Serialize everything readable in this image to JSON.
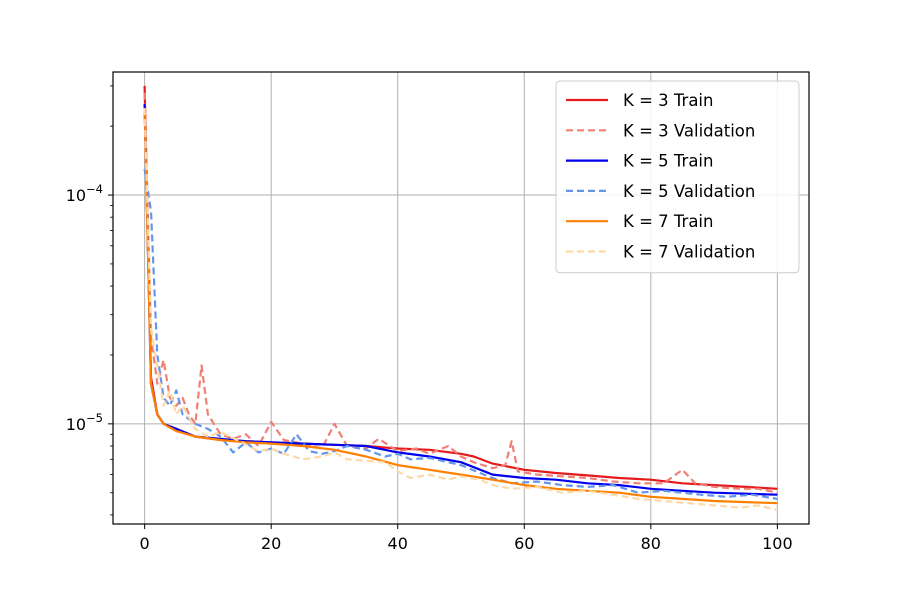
{
  "chart_data": {
    "type": "line",
    "title": "",
    "xlabel": "",
    "ylabel": "",
    "xlim": [
      -5,
      105
    ],
    "ylim": [
      3.65e-06,
      0.000345
    ],
    "yscale": "log",
    "grid": true,
    "legend_position": "top-right",
    "x_ticks": [
      0,
      20,
      40,
      60,
      80,
      100
    ],
    "x_tick_labels": [
      "0",
      "20",
      "40",
      "60",
      "80",
      "100"
    ],
    "y_ticks": [
      1e-05,
      0.0001
    ],
    "y_tick_labels": [
      {
        "base": "10",
        "exp": "−5"
      },
      {
        "base": "10",
        "exp": "−4"
      }
    ],
    "series": [
      {
        "name": "K = 3 Train",
        "color": "#e41a1c",
        "dash": "solid",
        "points": [
          [
            0,
            0.0003
          ],
          [
            1,
            1.6e-05
          ],
          [
            2,
            1.1e-05
          ],
          [
            3,
            1e-05
          ],
          [
            5,
            9.5e-06
          ],
          [
            8,
            8.8e-06
          ],
          [
            12,
            8.5e-06
          ],
          [
            16,
            8.4e-06
          ],
          [
            20,
            8.3e-06
          ],
          [
            25,
            8.2e-06
          ],
          [
            30,
            8.1e-06
          ],
          [
            35,
            8e-06
          ],
          [
            40,
            7.8e-06
          ],
          [
            45,
            7.7e-06
          ],
          [
            50,
            7.4e-06
          ],
          [
            52,
            7.2e-06
          ],
          [
            55,
            6.7e-06
          ],
          [
            60,
            6.3e-06
          ],
          [
            65,
            6.1e-06
          ],
          [
            70,
            5.95e-06
          ],
          [
            75,
            5.8e-06
          ],
          [
            80,
            5.7e-06
          ],
          [
            85,
            5.5e-06
          ],
          [
            90,
            5.4e-06
          ],
          [
            95,
            5.3e-06
          ],
          [
            100,
            5.2e-06
          ]
        ]
      },
      {
        "name": "K = 3 Validation",
        "color": "#f08074",
        "dash": "dashed",
        "points": [
          [
            0,
            0.00028
          ],
          [
            1,
            2.4e-05
          ],
          [
            2,
            1.5e-05
          ],
          [
            3,
            1.9e-05
          ],
          [
            4,
            1.3e-05
          ],
          [
            5,
            1.2e-05
          ],
          [
            6,
            1.3e-05
          ],
          [
            7,
            1.1e-05
          ],
          [
            8,
            1e-05
          ],
          [
            9,
            1.8e-05
          ],
          [
            10,
            1.1e-05
          ],
          [
            12,
            9e-06
          ],
          [
            14,
            8.6e-06
          ],
          [
            16,
            9e-06
          ],
          [
            18,
            8e-06
          ],
          [
            20,
            1.02e-05
          ],
          [
            22,
            8.5e-06
          ],
          [
            25,
            8.2e-06
          ],
          [
            28,
            7.8e-06
          ],
          [
            30,
            1e-05
          ],
          [
            32,
            8e-06
          ],
          [
            35,
            7.8e-06
          ],
          [
            37,
            8.6e-06
          ],
          [
            40,
            7.6e-06
          ],
          [
            43,
            7.8e-06
          ],
          [
            45,
            7.4e-06
          ],
          [
            48,
            8e-06
          ],
          [
            50,
            7.2e-06
          ],
          [
            52,
            6.8e-06
          ],
          [
            55,
            6.4e-06
          ],
          [
            57,
            6.6e-06
          ],
          [
            58,
            8.4e-06
          ],
          [
            59,
            6.2e-06
          ],
          [
            62,
            6e-06
          ],
          [
            66,
            5.9e-06
          ],
          [
            70,
            5.8e-06
          ],
          [
            74,
            5.6e-06
          ],
          [
            78,
            5.5e-06
          ],
          [
            82,
            5.5e-06
          ],
          [
            85,
            6.3e-06
          ],
          [
            87,
            5.5e-06
          ],
          [
            90,
            5.3e-06
          ],
          [
            94,
            5.2e-06
          ],
          [
            97,
            5.2e-06
          ],
          [
            100,
            5e-06
          ]
        ]
      },
      {
        "name": "K = 5 Train",
        "color": "#0000ee",
        "dash": "solid",
        "points": [
          [
            0,
            0.00025
          ],
          [
            1,
            1.5e-05
          ],
          [
            2,
            1.1e-05
          ],
          [
            3,
            1e-05
          ],
          [
            5,
            9.5e-06
          ],
          [
            8,
            8.8e-06
          ],
          [
            12,
            8.6e-06
          ],
          [
            16,
            8.4e-06
          ],
          [
            20,
            8.3e-06
          ],
          [
            25,
            8.2e-06
          ],
          [
            30,
            8.1e-06
          ],
          [
            35,
            8e-06
          ],
          [
            40,
            7.5e-06
          ],
          [
            45,
            7.2e-06
          ],
          [
            50,
            6.8e-06
          ],
          [
            55,
            6e-06
          ],
          [
            60,
            5.8e-06
          ],
          [
            65,
            5.7e-06
          ],
          [
            70,
            5.5e-06
          ],
          [
            75,
            5.4e-06
          ],
          [
            80,
            5.2e-06
          ],
          [
            85,
            5.1e-06
          ],
          [
            90,
            5e-06
          ],
          [
            95,
            4.95e-06
          ],
          [
            100,
            4.9e-06
          ]
        ]
      },
      {
        "name": "K = 5 Validation",
        "color": "#6495ed",
        "dash": "dashed",
        "points": [
          [
            0,
            0.00013
          ],
          [
            1,
            8.5e-05
          ],
          [
            2,
            2e-05
          ],
          [
            3,
            1.3e-05
          ],
          [
            4,
            1.2e-05
          ],
          [
            5,
            1.4e-05
          ],
          [
            6,
            1.1e-05
          ],
          [
            8,
            1e-05
          ],
          [
            10,
            9.5e-06
          ],
          [
            12,
            8.8e-06
          ],
          [
            14,
            7.5e-06
          ],
          [
            16,
            8.3e-06
          ],
          [
            18,
            7.5e-06
          ],
          [
            20,
            7.8e-06
          ],
          [
            22,
            7.4e-06
          ],
          [
            24,
            9e-06
          ],
          [
            26,
            7.6e-06
          ],
          [
            28,
            7.4e-06
          ],
          [
            30,
            7.6e-06
          ],
          [
            32,
            8e-06
          ],
          [
            35,
            7.7e-06
          ],
          [
            38,
            7.2e-06
          ],
          [
            40,
            7.4e-06
          ],
          [
            42,
            7e-06
          ],
          [
            45,
            7.1e-06
          ],
          [
            48,
            6.8e-06
          ],
          [
            50,
            6.6e-06
          ],
          [
            53,
            6.1e-06
          ],
          [
            55,
            5.8e-06
          ],
          [
            58,
            5.5e-06
          ],
          [
            62,
            5.6e-06
          ],
          [
            66,
            5.4e-06
          ],
          [
            70,
            5.3e-06
          ],
          [
            74,
            5.4e-06
          ],
          [
            78,
            5e-06
          ],
          [
            82,
            5.1e-06
          ],
          [
            85,
            5e-06
          ],
          [
            88,
            4.9e-06
          ],
          [
            92,
            4.8e-06
          ],
          [
            96,
            4.9e-06
          ],
          [
            100,
            4.7e-06
          ]
        ]
      },
      {
        "name": "K = 7 Train",
        "color": "#ff8000",
        "dash": "solid",
        "points": [
          [
            0,
            0.00024
          ],
          [
            1,
            1.5e-05
          ],
          [
            2,
            1.1e-05
          ],
          [
            3,
            1e-05
          ],
          [
            5,
            9.3e-06
          ],
          [
            8,
            8.8e-06
          ],
          [
            12,
            8.5e-06
          ],
          [
            16,
            8.3e-06
          ],
          [
            20,
            8.2e-06
          ],
          [
            25,
            8e-06
          ],
          [
            30,
            7.7e-06
          ],
          [
            35,
            7.2e-06
          ],
          [
            40,
            6.6e-06
          ],
          [
            45,
            6.3e-06
          ],
          [
            50,
            6e-06
          ],
          [
            55,
            5.7e-06
          ],
          [
            60,
            5.4e-06
          ],
          [
            65,
            5.2e-06
          ],
          [
            70,
            5.1e-06
          ],
          [
            75,
            5e-06
          ],
          [
            80,
            4.8e-06
          ],
          [
            85,
            4.7e-06
          ],
          [
            90,
            4.6e-06
          ],
          [
            95,
            4.55e-06
          ],
          [
            100,
            4.5e-06
          ]
        ]
      },
      {
        "name": "K = 7 Validation",
        "color": "#fdd9a8",
        "dash": "dashed",
        "points": [
          [
            0,
            0.00024
          ],
          [
            1,
            2.6e-05
          ],
          [
            2,
            1.8e-05
          ],
          [
            3,
            1.2e-05
          ],
          [
            4,
            1.4e-05
          ],
          [
            5,
            1.1e-05
          ],
          [
            6,
            1.2e-05
          ],
          [
            8,
            9.5e-06
          ],
          [
            10,
            8.8e-06
          ],
          [
            12,
            9.2e-06
          ],
          [
            15,
            8.4e-06
          ],
          [
            18,
            7.6e-06
          ],
          [
            20,
            7.8e-06
          ],
          [
            22,
            7.4e-06
          ],
          [
            25,
            7e-06
          ],
          [
            28,
            7.2e-06
          ],
          [
            30,
            7.5e-06
          ],
          [
            32,
            7e-06
          ],
          [
            35,
            6.9e-06
          ],
          [
            38,
            6.8e-06
          ],
          [
            40,
            6.2e-06
          ],
          [
            42,
            5.8e-06
          ],
          [
            45,
            6e-06
          ],
          [
            48,
            5.7e-06
          ],
          [
            50,
            5.9e-06
          ],
          [
            53,
            5.7e-06
          ],
          [
            55,
            5.4e-06
          ],
          [
            58,
            5.2e-06
          ],
          [
            62,
            5.3e-06
          ],
          [
            66,
            5e-06
          ],
          [
            70,
            5.1e-06
          ],
          [
            74,
            4.9e-06
          ],
          [
            78,
            4.7e-06
          ],
          [
            82,
            4.6e-06
          ],
          [
            86,
            4.5e-06
          ],
          [
            90,
            4.4e-06
          ],
          [
            94,
            4.3e-06
          ],
          [
            97,
            4.4e-06
          ],
          [
            100,
            4.2e-06
          ]
        ]
      }
    ]
  }
}
